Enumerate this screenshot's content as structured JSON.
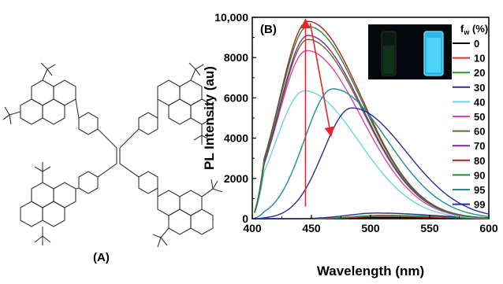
{
  "panel_a": {
    "label": "(A)"
  },
  "chart_data": {
    "type": "line",
    "panel_label": "(B)",
    "xlabel": "Wavelength (nm)",
    "ylabel": "PL Intensity (au)",
    "xlim": [
      400,
      600
    ],
    "ylim": [
      0,
      10000
    ],
    "x_ticks": [
      400,
      450,
      500,
      550,
      600
    ],
    "y_ticks": [
      0,
      2000,
      4000,
      6000,
      8000,
      10000
    ],
    "y_tick_labels": [
      "0",
      "2000",
      "4000",
      "6000",
      "8000",
      "10,000"
    ],
    "legend_title": "f",
    "legend_title_sub": "w",
    "legend_title_tail": " (%)",
    "legend_position": "right",
    "grid": false,
    "series": [
      {
        "name": "0",
        "color": "#000000",
        "peak": 505,
        "height": 60
      },
      {
        "name": "10",
        "color": "#e8262a",
        "peak": 510,
        "height": 110
      },
      {
        "name": "20",
        "color": "#1a9a2a",
        "peak": 510,
        "height": 170
      },
      {
        "name": "30",
        "color": "#2a2a9a",
        "peak": 505,
        "height": 280
      },
      {
        "name": "40",
        "color": "#6cd3e3",
        "peak": 444,
        "height": 6350
      },
      {
        "name": "50",
        "color": "#e040b0",
        "peak": 446,
        "height": 8350
      },
      {
        "name": "60",
        "color": "#6a6a22",
        "peak": 447,
        "height": 8900
      },
      {
        "name": "70",
        "color": "#7a2aa0",
        "peak": 447,
        "height": 9100
      },
      {
        "name": "80",
        "color": "#b02020",
        "peak": 447,
        "height": 9800
      },
      {
        "name": "90",
        "color": "#1f8a2f",
        "peak": 447,
        "height": 9550
      },
      {
        "name": "95",
        "color": "#1a9090",
        "peak": 468,
        "height": 6450
      },
      {
        "name": "99",
        "color": "#2a2aa0",
        "peak": 484,
        "height": 5500
      }
    ],
    "baseline_series": [
      {
        "name": "0",
        "color": "#000000",
        "peak": 505,
        "height": 60
      },
      {
        "name": "10",
        "color": "#e8262a",
        "peak": 510,
        "height": 110
      },
      {
        "name": "20",
        "color": "#1a9a2a",
        "peak": 510,
        "height": 170
      },
      {
        "name": "30",
        "color": "#2a2a9a",
        "peak": 505,
        "height": 280
      }
    ],
    "arrows": [
      {
        "x": 445,
        "y_from": 600,
        "y_to": 9700,
        "color": "#e8262a"
      },
      {
        "x_from": 449,
        "x_to": 466,
        "y_from": 9700,
        "y_to": 4300,
        "color": "#e8262a"
      }
    ]
  }
}
